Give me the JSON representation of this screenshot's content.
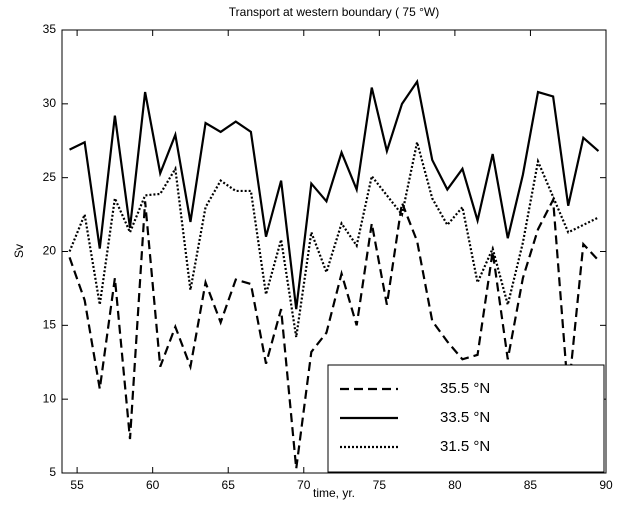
{
  "chart_data": {
    "type": "line",
    "title": "Transport at western boundary ( 75 °W)",
    "xlabel": "time, yr.",
    "ylabel": "Sv",
    "x": [
      54.5,
      55.5,
      56.5,
      57.5,
      58.5,
      59.5,
      60.5,
      61.5,
      62.5,
      63.5,
      64.5,
      65.5,
      66.5,
      67.5,
      68.5,
      69.5,
      70.5,
      71.5,
      72.5,
      73.5,
      74.5,
      75.5,
      76.5,
      77.5,
      78.5,
      79.5,
      80.5,
      81.5,
      82.5,
      83.5,
      84.5,
      85.5,
      86.5,
      87.5,
      88.5,
      89.5
    ],
    "series": [
      {
        "name": "35.5 °N",
        "color": "#000000",
        "linestyle": "dashed",
        "values": [
          19.6,
          16.7,
          10.7,
          18.2,
          7.3,
          23.4,
          12.2,
          14.9,
          12.2,
          17.9,
          15.2,
          18.1,
          17.8,
          12.4,
          16.1,
          5.3,
          13.2,
          14.5,
          18.5,
          15.0,
          21.9,
          16.4,
          23.3,
          20.7,
          15.3,
          13.9,
          12.7,
          13.0,
          20.0,
          12.7,
          18.2,
          21.5,
          23.5,
          10.3,
          20.5,
          19.4
        ]
      },
      {
        "name": "33.5 °N",
        "color": "#000000",
        "linestyle": "solid",
        "values": [
          26.9,
          27.4,
          20.2,
          29.2,
          21.6,
          30.8,
          25.3,
          27.9,
          22.0,
          28.7,
          28.1,
          28.8,
          28.1,
          21.0,
          24.8,
          16.1,
          24.6,
          23.4,
          26.7,
          24.2,
          31.1,
          26.8,
          30.0,
          31.5,
          26.2,
          24.2,
          25.6,
          22.1,
          26.6,
          20.9,
          25.2,
          30.8,
          30.5,
          23.1,
          27.7,
          26.8
        ]
      },
      {
        "name": "31.5 °N",
        "color": "#000000",
        "linestyle": "dotted",
        "values": [
          20.0,
          22.5,
          16.4,
          23.6,
          21.3,
          23.8,
          23.9,
          25.6,
          17.4,
          23.0,
          24.8,
          24.1,
          24.1,
          17.1,
          20.8,
          14.2,
          21.3,
          18.6,
          21.9,
          20.4,
          25.1,
          23.8,
          22.5,
          27.4,
          23.6,
          21.8,
          23.0,
          17.9,
          20.2,
          16.4,
          20.6,
          26.1,
          23.7,
          21.3,
          21.8,
          22.3
        ]
      }
    ],
    "xlim": [
      54,
      90
    ],
    "xticks": [
      55,
      60,
      65,
      70,
      75,
      80,
      85,
      90
    ],
    "ylim": [
      5,
      35
    ],
    "yticks": [
      5,
      10,
      15,
      20,
      25,
      30,
      35
    ],
    "legend": "lower right"
  }
}
